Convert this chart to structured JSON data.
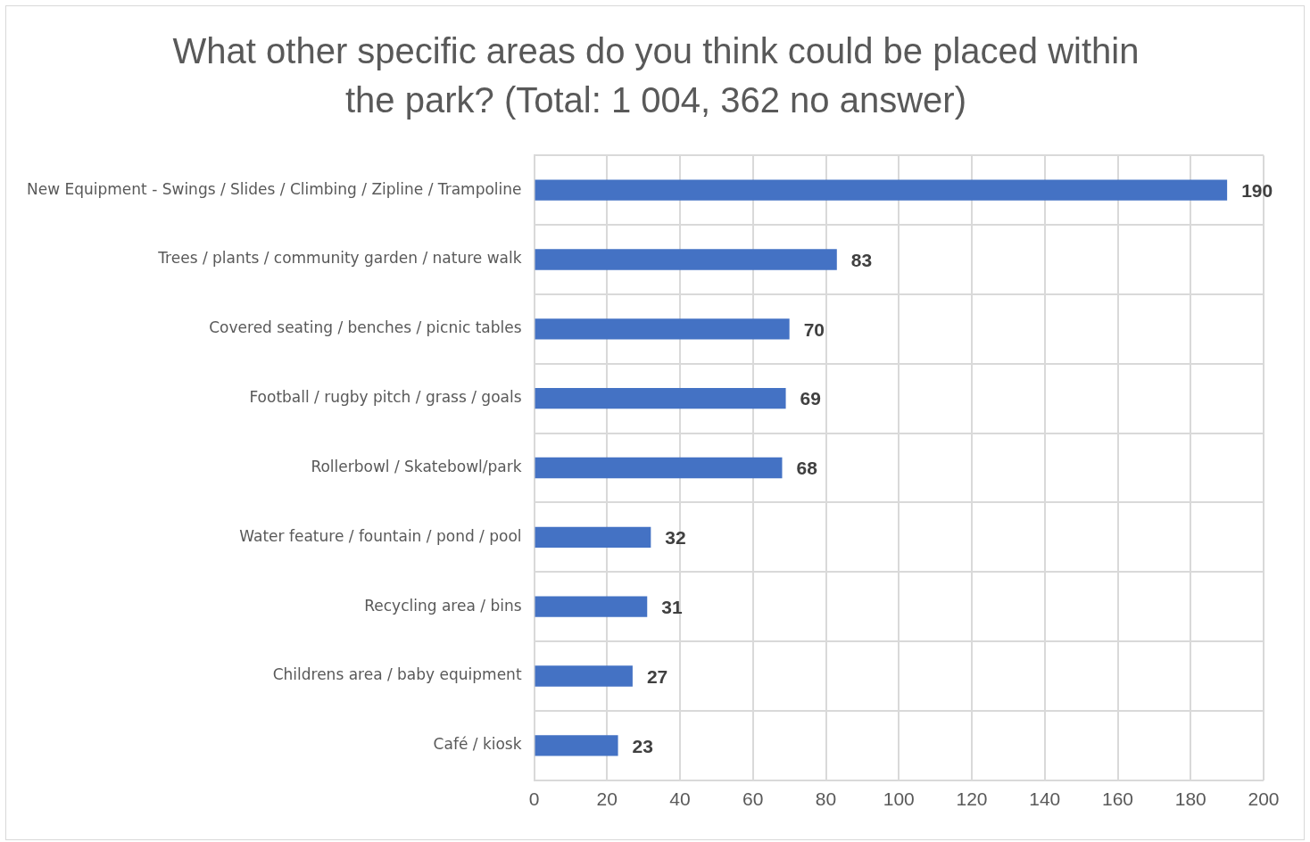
{
  "chart_data": {
    "type": "bar",
    "orientation": "horizontal",
    "title": "What other specific areas do you think could be placed within the park? (Total: 1 004, 362 no answer)",
    "categories": [
      "New Equipment - Swings / Slides / Climbing / Zipline / Trampoline",
      "Trees / plants / community garden / nature walk",
      "Covered seating / benches / picnic tables",
      "Football / rugby pitch / grass / goals",
      "Rollerbowl / Skatebowl/park",
      "Water feature / fountain / pond / pool",
      "Recycling area / bins",
      "Childrens area / baby equipment",
      "Café / kiosk"
    ],
    "values": [
      190,
      83,
      70,
      69,
      68,
      32,
      31,
      27,
      23
    ],
    "color": "#4472c4",
    "xlim": [
      0,
      200
    ],
    "xticks": [
      0,
      20,
      40,
      60,
      80,
      100,
      120,
      140,
      160,
      180,
      200
    ],
    "grid": true,
    "data_labels": true
  }
}
